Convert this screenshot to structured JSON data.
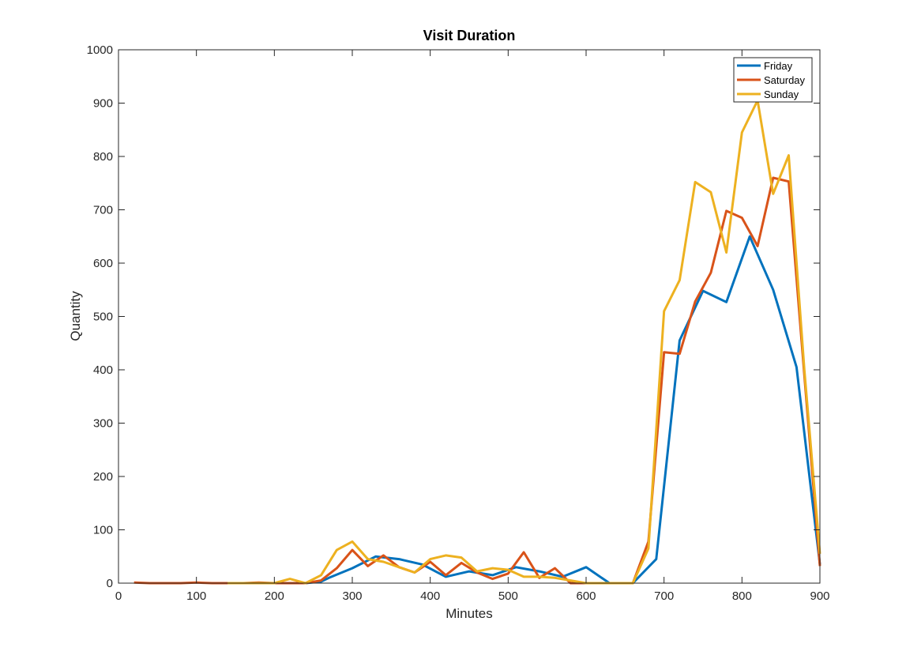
{
  "chart_data": {
    "type": "line",
    "title": "Visit Duration",
    "xlabel": "Minutes",
    "ylabel": "Quantity",
    "xlim": [
      0,
      900
    ],
    "ylim": [
      0,
      1000
    ],
    "xticks": [
      0,
      100,
      200,
      300,
      400,
      500,
      600,
      700,
      800,
      900
    ],
    "yticks": [
      0,
      100,
      200,
      300,
      400,
      500,
      600,
      700,
      800,
      900,
      1000
    ],
    "grid": false,
    "legend_position": "top-right",
    "series": [
      {
        "name": "Friday",
        "color": "#0072BD",
        "x": [
          240,
          260,
          270,
          300,
          330,
          360,
          390,
          420,
          450,
          480,
          510,
          540,
          570,
          600,
          630,
          660,
          690,
          720,
          750,
          780,
          810,
          840,
          870,
          900
        ],
        "y": [
          0,
          3,
          10,
          28,
          50,
          45,
          35,
          12,
          22,
          15,
          30,
          22,
          12,
          30,
          0,
          0,
          45,
          455,
          548,
          527,
          650,
          550,
          405,
          35
        ]
      },
      {
        "name": "Saturday",
        "color": "#D95319",
        "x": [
          20,
          40,
          60,
          80,
          100,
          120,
          140,
          160,
          180,
          200,
          220,
          240,
          260,
          280,
          300,
          320,
          340,
          360,
          380,
          400,
          420,
          440,
          460,
          480,
          500,
          520,
          540,
          560,
          580,
          600,
          620,
          640,
          660,
          680,
          700,
          720,
          740,
          760,
          780,
          800,
          820,
          840,
          860,
          880,
          900
        ],
        "y": [
          1,
          0,
          0,
          0,
          1,
          0,
          0,
          0,
          1,
          0,
          0,
          0,
          5,
          28,
          62,
          32,
          52,
          30,
          20,
          40,
          15,
          38,
          20,
          8,
          18,
          58,
          10,
          28,
          0,
          0,
          0,
          0,
          0,
          78,
          433,
          430,
          528,
          582,
          698,
          685,
          632,
          760,
          753,
          390,
          32
        ]
      },
      {
        "name": "Sunday",
        "color": "#EDB120",
        "x": [
          140,
          160,
          180,
          200,
          220,
          240,
          260,
          280,
          300,
          320,
          340,
          360,
          380,
          400,
          420,
          440,
          460,
          480,
          500,
          520,
          540,
          560,
          580,
          600,
          620,
          640,
          660,
          680,
          700,
          720,
          740,
          760,
          780,
          800,
          820,
          840,
          860,
          880,
          900
        ],
        "y": [
          0,
          0,
          0,
          0,
          8,
          0,
          15,
          62,
          78,
          45,
          40,
          30,
          20,
          45,
          52,
          48,
          22,
          28,
          25,
          12,
          12,
          10,
          5,
          0,
          0,
          0,
          0,
          65,
          510,
          568,
          752,
          733,
          620,
          845,
          905,
          730,
          802,
          400,
          55
        ]
      }
    ]
  }
}
